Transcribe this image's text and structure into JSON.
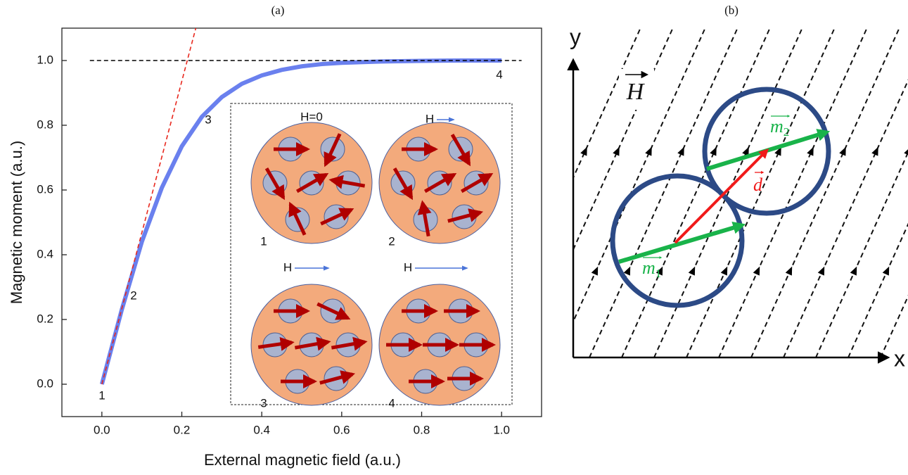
{
  "chart_data": {
    "type": "line",
    "title": "(a)",
    "x_label": "External magnetic field (a.u.)",
    "y_label": "Magnetic moment (a.u.)",
    "xlim": [
      -0.1,
      1.1
    ],
    "ylim": [
      -0.1,
      1.1
    ],
    "xticks": [
      {
        "value": 0,
        "label": "0.0"
      },
      {
        "value": 0.2,
        "label": "0.2"
      },
      {
        "value": 0.4,
        "label": "0.4"
      },
      {
        "value": 0.6,
        "label": "0.6"
      },
      {
        "value": 0.8,
        "label": "0.8"
      },
      {
        "value": 1,
        "label": "1.0"
      }
    ],
    "yticks": [
      {
        "value": 0,
        "label": "0.0"
      },
      {
        "value": 0.2,
        "label": "0.2"
      },
      {
        "value": 0.4,
        "label": "0.4"
      },
      {
        "value": 0.6,
        "label": "0.6"
      },
      {
        "value": 0.8,
        "label": "0.8"
      },
      {
        "value": 1,
        "label": "1.0"
      }
    ],
    "series": [
      {
        "color": "#6a80ee",
        "x": [
          0,
          0.05,
          0.1,
          0.15,
          0.2,
          0.25,
          0.3,
          0.35,
          0.4,
          0.45,
          0.5,
          0.55,
          0.6,
          0.7,
          0.8,
          0.9,
          1.0
        ],
        "values": [
          0,
          0.231,
          0.44,
          0.607,
          0.735,
          0.826,
          0.887,
          0.928,
          0.954,
          0.971,
          0.982,
          0.989,
          0.993,
          0.997,
          0.999,
          1.0,
          1.0
        ]
      },
      {
        "color": "#e8281e",
        "dash": true,
        "x": [
          0,
          0.235
        ],
        "values": [
          0,
          1.1
        ]
      },
      {
        "color": "#000000",
        "dash": true,
        "x": [
          -0.03,
          1.05
        ],
        "values": [
          1,
          1
        ]
      }
    ],
    "annotations": [
      "1",
      "2",
      "3",
      "4"
    ],
    "inset": {
      "panels": [
        {
          "field_label": "H=0",
          "number": "1"
        },
        {
          "field_label": "H",
          "number": "2"
        },
        {
          "field_label": "H",
          "number": "3"
        },
        {
          "field_label": "H",
          "number": "4"
        }
      ]
    }
  },
  "diagram": {
    "title": "(b)",
    "y_axis": "y",
    "x_axis": "x",
    "field": "H",
    "vectors": [
      {
        "symbol": "m",
        "subscript": "1"
      },
      {
        "symbol": "m",
        "subscript": "2"
      },
      {
        "symbol": "d"
      }
    ]
  }
}
